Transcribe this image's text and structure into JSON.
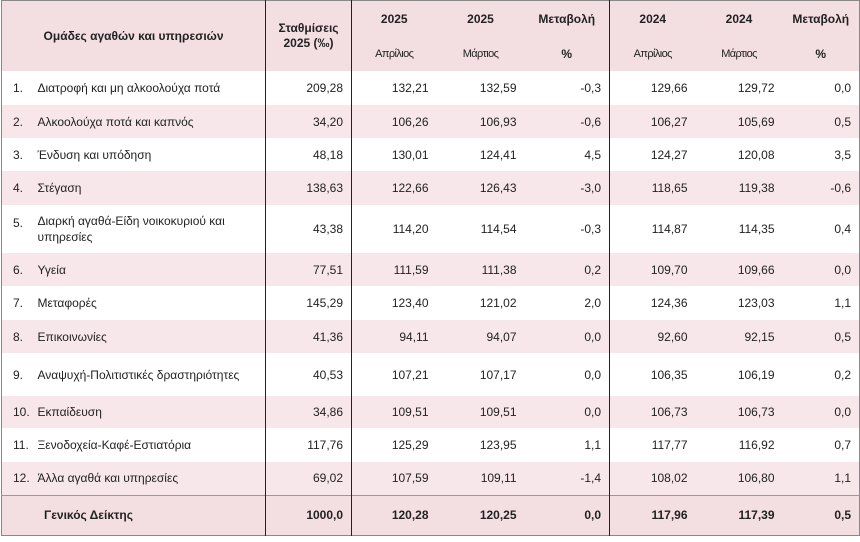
{
  "header": {
    "group_label": "Ομάδες αγαθών και υπηρεσιών",
    "weights_label": "Σταθμίσεις 2025 (‰)",
    "y2025_a": "2025",
    "y2025_b": "2025",
    "change_2025": "Μεταβολή",
    "y2024_a": "2024",
    "y2024_b": "2024",
    "change_2024": "Μεταβολή",
    "april": "Απρίλιος",
    "march": "Μάρτιος",
    "pct": "%",
    "april_2": "Απρίλιος",
    "march_2": "Μάρτιος",
    "pct_2": "%"
  },
  "rows": [
    {
      "idx": "1.",
      "name": "Διατροφή και μη αλκοολούχα ποτά",
      "weight": "209,28",
      "apr25": "132,21",
      "mar25": "132,59",
      "ch25": "-0,3",
      "apr24": "129,66",
      "mar24": "129,72",
      "ch24": "0,0"
    },
    {
      "idx": "2.",
      "name": "Αλκοολούχα ποτά και καπνός",
      "weight": "34,20",
      "apr25": "106,26",
      "mar25": "106,93",
      "ch25": "-0,6",
      "apr24": "106,27",
      "mar24": "105,69",
      "ch24": "0,5"
    },
    {
      "idx": "3.",
      "name": "Ένδυση και υπόδηση",
      "weight": "48,18",
      "apr25": "130,01",
      "mar25": "124,41",
      "ch25": "4,5",
      "apr24": "124,27",
      "mar24": "120,08",
      "ch24": "3,5"
    },
    {
      "idx": "4.",
      "name": "Στέγαση",
      "weight": "138,63",
      "apr25": "122,66",
      "mar25": "126,43",
      "ch25": "-3,0",
      "apr24": "118,65",
      "mar24": "119,38",
      "ch24": "-0,6"
    },
    {
      "idx": "5.",
      "name": "Διαρκή αγαθά-Είδη νοικοκυριού και υπηρεσίες",
      "weight": "43,38",
      "apr25": "114,20",
      "mar25": "114,54",
      "ch25": "-0,3",
      "apr24": "114,87",
      "mar24": "114,35",
      "ch24": "0,4"
    },
    {
      "idx": "6.",
      "name": "Υγεία",
      "weight": "77,51",
      "apr25": "111,59",
      "mar25": "111,38",
      "ch25": "0,2",
      "apr24": "109,70",
      "mar24": "109,66",
      "ch24": "0,0"
    },
    {
      "idx": "7.",
      "name": "Μεταφορές",
      "weight": "145,29",
      "apr25": "123,40",
      "mar25": "121,02",
      "ch25": "2,0",
      "apr24": "124,36",
      "mar24": "123,03",
      "ch24": "1,1"
    },
    {
      "idx": "8.",
      "name": "Επικοινωνίες",
      "weight": "41,36",
      "apr25": "94,11",
      "mar25": "94,07",
      "ch25": "0,0",
      "apr24": "92,60",
      "mar24": "92,15",
      "ch24": "0,5"
    },
    {
      "idx": "9.",
      "name": "Αναψυχή-Πολιτιστικές δραστηριότητες",
      "weight": "40,53",
      "apr25": "107,21",
      "mar25": "107,17",
      "ch25": "0,0",
      "apr24": "106,35",
      "mar24": "106,19",
      "ch24": "0,2"
    },
    {
      "idx": "10.",
      "name": "Εκπαίδευση",
      "weight": "34,86",
      "apr25": "109,51",
      "mar25": "109,51",
      "ch25": "0,0",
      "apr24": "106,73",
      "mar24": "106,73",
      "ch24": "0,0"
    },
    {
      "idx": "11.",
      "name": "Ξενοδοχεία-Καφέ-Εστιατόρια",
      "weight": "117,76",
      "apr25": "125,29",
      "mar25": "123,95",
      "ch25": "1,1",
      "apr24": "117,77",
      "mar24": "116,92",
      "ch24": "0,7"
    },
    {
      "idx": "12.",
      "name": "Άλλα αγαθά και υπηρεσίες",
      "weight": "69,02",
      "apr25": "107,59",
      "mar25": "109,11",
      "ch25": "-1,4",
      "apr24": "108,02",
      "mar24": "106,80",
      "ch24": "1,1"
    }
  ],
  "total": {
    "name": "Γενικός Δείκτης",
    "weight": "1000,0",
    "apr25": "120,28",
    "mar25": "120,25",
    "ch25": "0,0",
    "apr24": "117,96",
    "mar24": "117,39",
    "ch24": "0,5"
  }
}
